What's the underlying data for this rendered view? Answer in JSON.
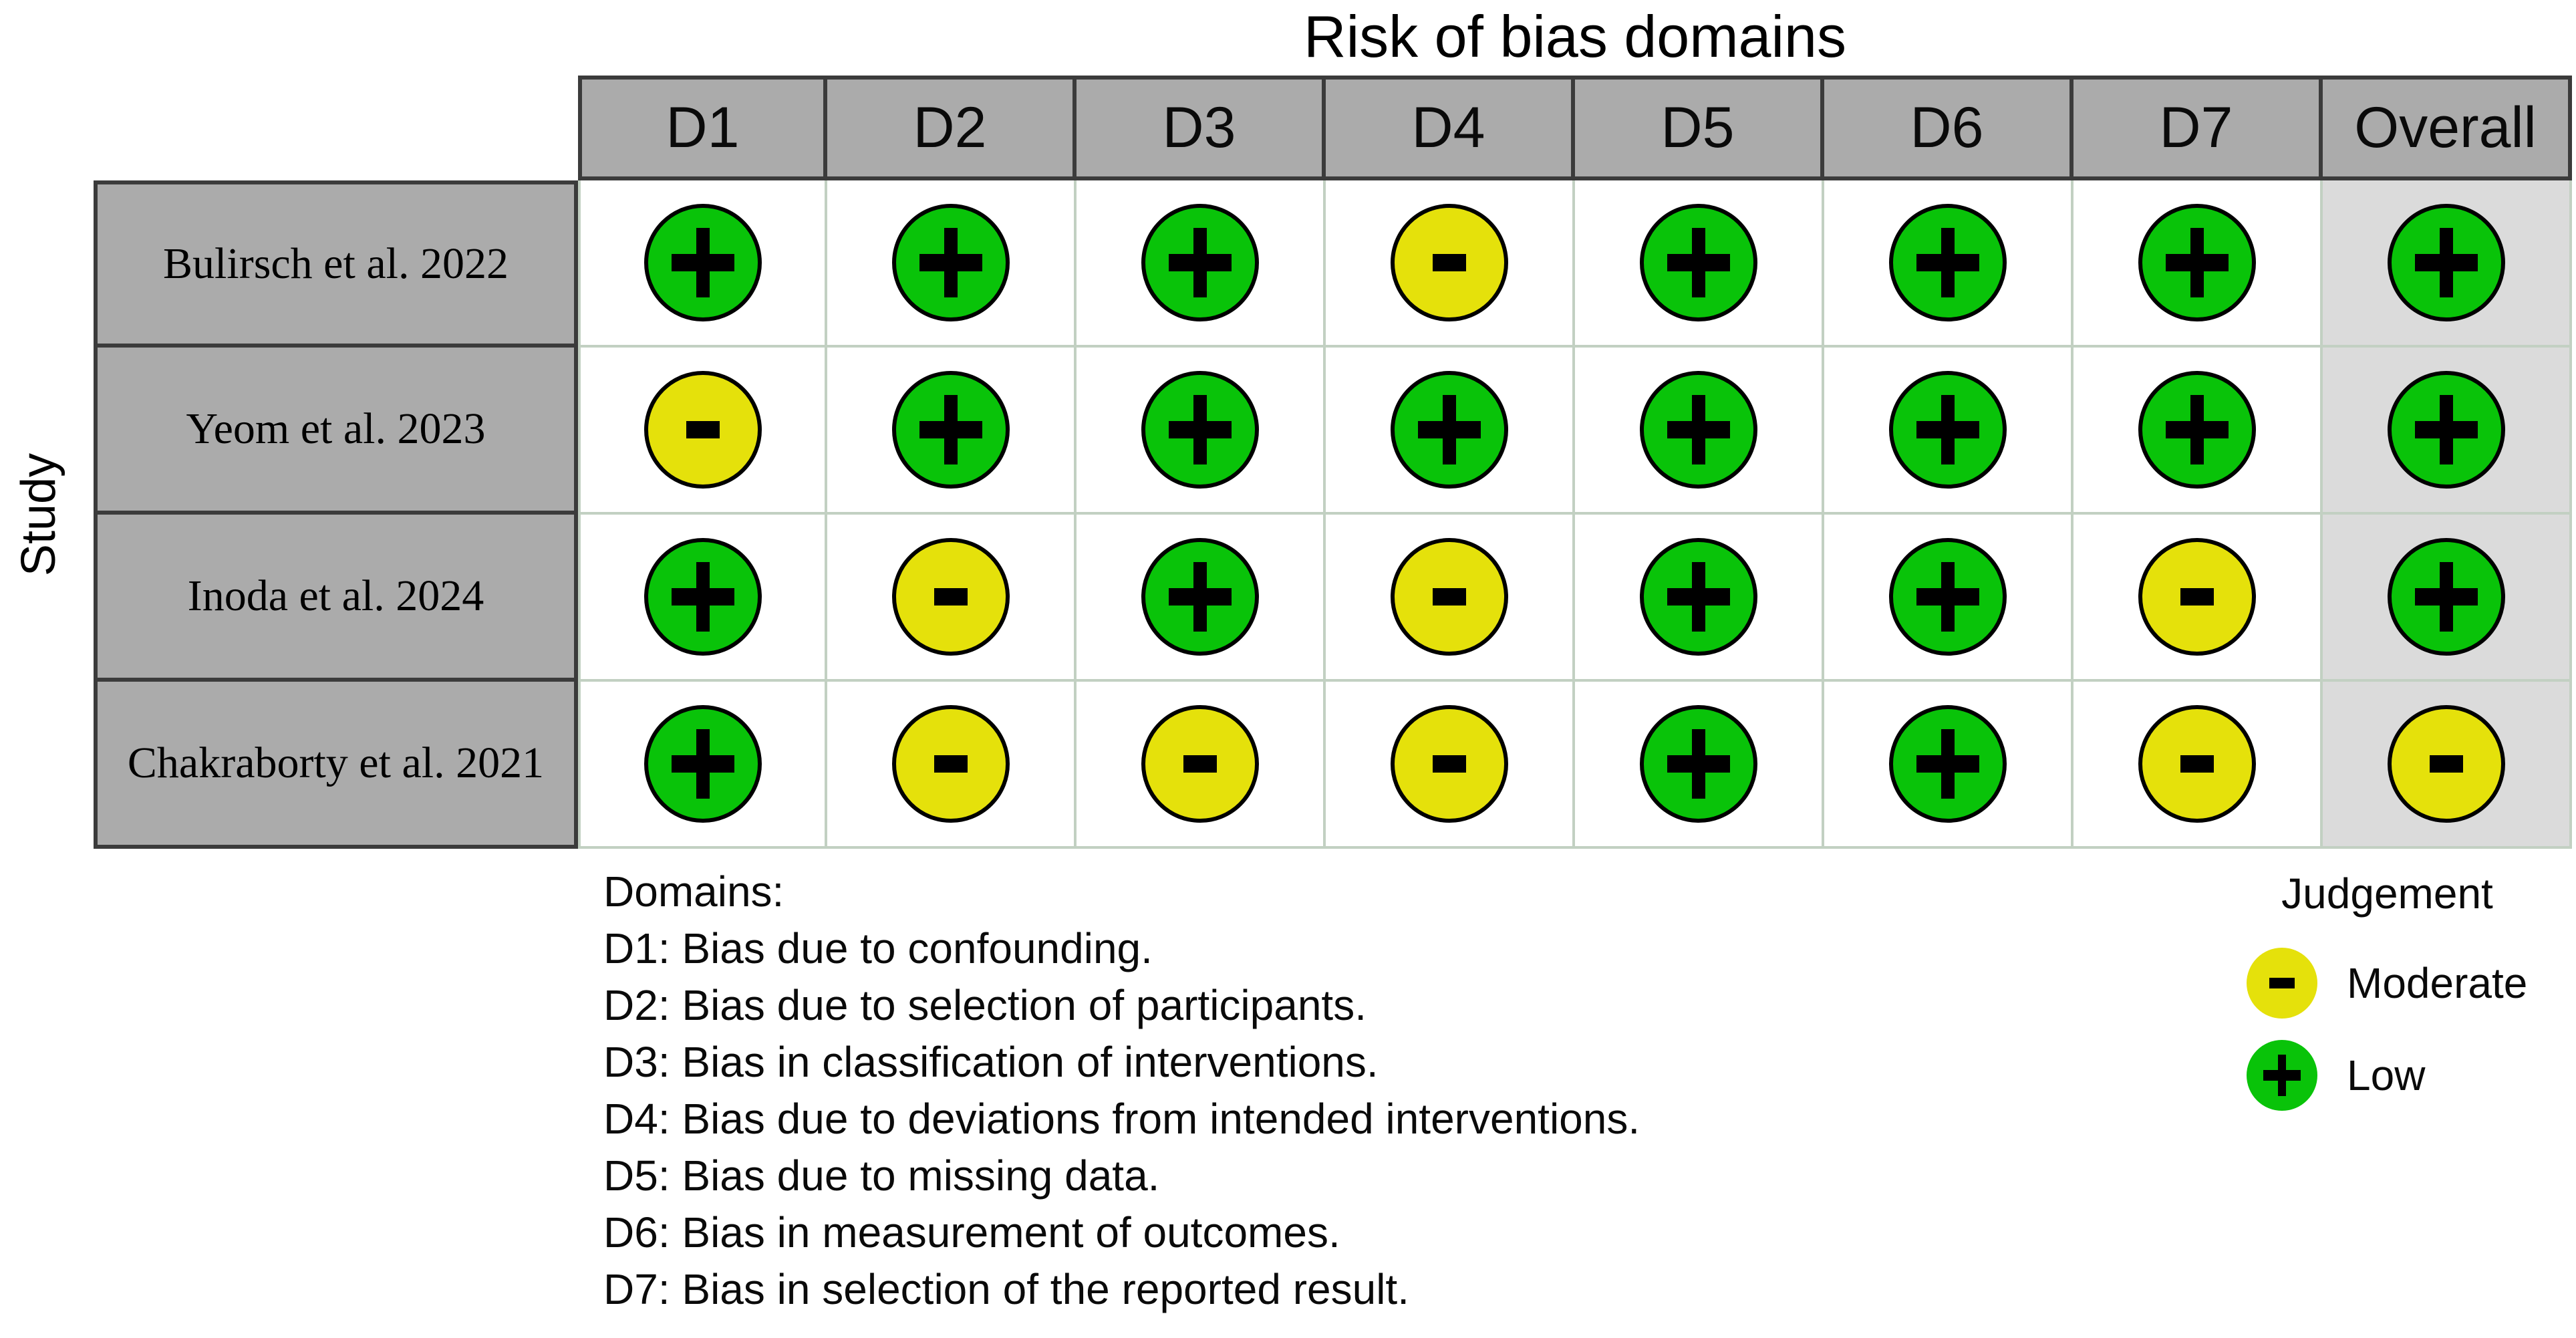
{
  "colors": {
    "header_bg": "#ABABAB",
    "overall_col_bg": "#DBDBDB",
    "grid_line": "#C2D0C2",
    "dark_border": "#3B3B3B",
    "symbol": "#000000",
    "background": "#FFFFFF"
  },
  "chart_data": {
    "type": "table",
    "title": "Risk of bias domains",
    "ylabel": "Study",
    "x_categories": [
      "D1",
      "D2",
      "D3",
      "D4",
      "D5",
      "D6",
      "D7",
      "Overall"
    ],
    "y_categories": [
      "Bulirsch et al. 2022",
      "Yeom et al. 2023",
      "Inoda et al. 2024",
      "Chakraborty et al. 2021"
    ],
    "values": [
      [
        "low",
        "low",
        "low",
        "moderate",
        "low",
        "low",
        "low",
        "low"
      ],
      [
        "moderate",
        "low",
        "low",
        "low",
        "low",
        "low",
        "low",
        "low"
      ],
      [
        "low",
        "moderate",
        "low",
        "moderate",
        "low",
        "low",
        "moderate",
        "low"
      ],
      [
        "low",
        "moderate",
        "moderate",
        "moderate",
        "low",
        "low",
        "moderate",
        "moderate"
      ]
    ],
    "judgements": {
      "low": {
        "label": "Low",
        "symbol": "plus",
        "glyph": "+",
        "color": "#09C309"
      },
      "moderate": {
        "label": "Moderate",
        "symbol": "minus",
        "glyph": "-",
        "color": "#E5E10B"
      }
    },
    "legend": {
      "title": "Judgement",
      "position": "bottom-right",
      "entries": [
        {
          "judgement": "moderate",
          "label": "Moderate"
        },
        {
          "judgement": "low",
          "label": "Low"
        }
      ]
    },
    "footnote": {
      "heading": "Domains:",
      "lines": [
        "D1: Bias due to confounding.",
        "D2: Bias due to selection of participants.",
        "D3: Bias in classification of interventions.",
        "D4: Bias due to deviations from intended interventions.",
        "D5: Bias due to missing data.",
        "D6: Bias in measurement of outcomes.",
        "D7: Bias in selection of the reported result."
      ]
    }
  }
}
